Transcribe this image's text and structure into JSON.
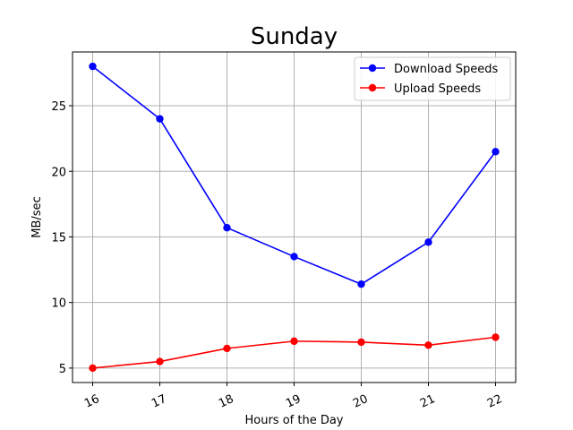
{
  "chart_data": {
    "type": "line",
    "title": "Sunday",
    "xlabel": "Hours of the Day",
    "ylabel": "MB/sec",
    "x": [
      16,
      17,
      18,
      19,
      20,
      21,
      22
    ],
    "xlim": [
      15.7,
      22.3
    ],
    "ylim": [
      3.9,
      29.1
    ],
    "yticks": [
      5,
      10,
      15,
      20,
      25
    ],
    "grid": true,
    "legend_position": "top-right",
    "series": [
      {
        "name": "Download Speeds",
        "color": "#0000ff",
        "values": [
          28.0,
          24.0,
          15.7,
          13.5,
          11.4,
          14.6,
          21.5
        ]
      },
      {
        "name": "Upload Speeds",
        "color": "#ff0000",
        "values": [
          5.0,
          5.5,
          6.5,
          7.05,
          6.98,
          6.75,
          7.35
        ]
      }
    ]
  }
}
